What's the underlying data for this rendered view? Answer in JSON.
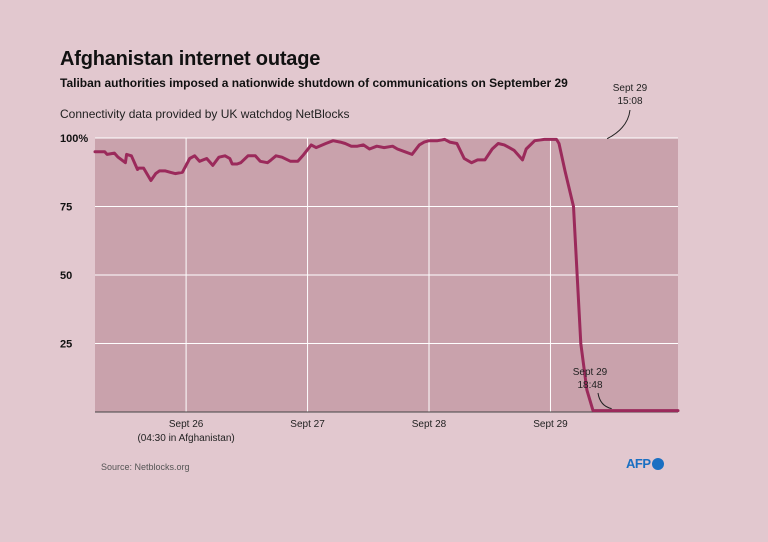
{
  "header": {
    "title": "Afghanistan internet outage",
    "subtitle": "Taliban authorities imposed a nationwide shutdown of communications on September 29",
    "note": "Connectivity data provided by UK watchdog NetBlocks"
  },
  "footer": {
    "source": "Source: Netblocks.org",
    "logo_text": "AFP"
  },
  "colors": {
    "background": "#e2c8cf",
    "plot_area": "#c9a2ac",
    "line": "#9b2a5b",
    "grid": "#ffffff",
    "logo": "#1a6fc2"
  },
  "chart_data": {
    "type": "line",
    "title": "Afghanistan internet outage",
    "subtitle": "Taliban authorities imposed a nationwide shutdown of communications on September 29",
    "ylim": [
      0,
      100
    ],
    "yticks": [
      25,
      50,
      75,
      100
    ],
    "ytick_labels": [
      "25",
      "50",
      "75",
      "100%"
    ],
    "xlim": [
      0,
      4.8
    ],
    "xticks": [
      0.75,
      1.75,
      2.75,
      3.75
    ],
    "xtick_labels": [
      "Sept 26",
      "Sept 27",
      "Sept 28",
      "Sept 29"
    ],
    "xtick_sublabel": "(04:30 in Afghanistan)",
    "grid": true,
    "x_unit_note": "days after Sept 25, 04:30 Afghanistan time",
    "annotations": [
      {
        "line1": "Sept 29",
        "line2": "15:08",
        "x": 4.2,
        "y": 99
      },
      {
        "line1": "Sept 29",
        "line2": "18:48",
        "x": 4.27,
        "y": 0.5
      }
    ],
    "series": [
      {
        "name": "Connectivity",
        "x": [
          0.0,
          0.08,
          0.1,
          0.16,
          0.19,
          0.25,
          0.26,
          0.3,
          0.35,
          0.36,
          0.4,
          0.46,
          0.5,
          0.53,
          0.58,
          0.62,
          0.66,
          0.72,
          0.78,
          0.82,
          0.86,
          0.92,
          0.97,
          1.02,
          1.07,
          1.11,
          1.13,
          1.17,
          1.2,
          1.26,
          1.32,
          1.36,
          1.42,
          1.45,
          1.49,
          1.54,
          1.61,
          1.67,
          1.71,
          1.78,
          1.82,
          1.9,
          1.96,
          2.02,
          2.06,
          2.11,
          2.16,
          2.21,
          2.26,
          2.32,
          2.38,
          2.45,
          2.49,
          2.55,
          2.61,
          2.67,
          2.71,
          2.75,
          2.82,
          2.88,
          2.92,
          2.98,
          3.04,
          3.1,
          3.15,
          3.21,
          3.27,
          3.32,
          3.37,
          3.41,
          3.45,
          3.52,
          3.55,
          3.62,
          3.7,
          3.76,
          3.8,
          3.82,
          3.87,
          3.94,
          4.0,
          4.05,
          4.1,
          4.15,
          4.2,
          4.25,
          4.29,
          4.32,
          4.35,
          4.4,
          4.5,
          4.6,
          4.7,
          4.8
        ],
        "y": [
          95,
          95,
          94,
          94.5,
          93,
          91,
          94,
          93.5,
          88.5,
          89,
          89,
          84.5,
          87,
          88,
          88,
          87.5,
          87,
          87.5,
          92.5,
          93.5,
          91.5,
          92.5,
          90,
          93,
          93.5,
          92.5,
          90.5,
          90.5,
          91,
          93.5,
          93.5,
          91.5,
          91,
          92,
          93.5,
          93,
          91.5,
          91.5,
          93.5,
          97.5,
          96.5,
          98,
          99,
          98.5,
          98,
          97,
          97,
          97.5,
          96,
          97,
          96.5,
          97,
          96,
          95,
          94,
          97.5,
          98.5,
          99,
          99,
          99.5,
          98.5,
          98,
          92.5,
          91,
          92,
          92,
          96,
          98,
          97.5,
          96.5,
          95.5,
          92,
          96,
          99,
          99.5,
          99.5,
          99.5,
          98,
          88,
          75,
          25,
          8,
          0.5,
          0.5,
          0.5,
          0.5,
          0.5,
          0.5,
          0.5,
          0.5,
          0.5,
          0.5,
          0.5,
          0.5
        ]
      }
    ]
  }
}
